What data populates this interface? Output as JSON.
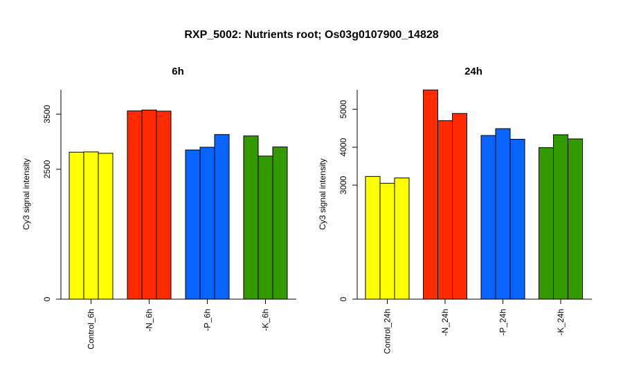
{
  "main_title": "RXP_5002: Nutrients root; Os03g0107900_14828",
  "chart_data": [
    {
      "type": "bar",
      "title": "6h",
      "ylabel": "Cy3 signal intensity",
      "xlabel": "",
      "yticks": [
        0,
        2500,
        3500
      ],
      "ylim_note": "broken axis: 0 at baseline, 2500-3500 scale above",
      "groups": [
        {
          "label": "Control_6h",
          "color": "#FFFF00",
          "values": [
            2810,
            2815,
            2790
          ]
        },
        {
          "label": "-N_6h",
          "color": "#FF2A00",
          "values": [
            3560,
            3575,
            3555
          ]
        },
        {
          "label": "-P_6h",
          "color": "#0A64FF",
          "values": [
            2850,
            2900,
            3130
          ]
        },
        {
          "label": "-K_6h",
          "color": "#339900",
          "values": [
            3105,
            2740,
            2905
          ]
        }
      ]
    },
    {
      "type": "bar",
      "title": "24h",
      "ylabel": "Cy3 signal intensity",
      "xlabel": "",
      "yticks": [
        0,
        3000,
        4000,
        5000
      ],
      "ylim_note": "broken axis: 0 at baseline, 3000-5000 scale above",
      "groups": [
        {
          "label": "Control_24h",
          "color": "#FFFF00",
          "values": [
            3230,
            3050,
            3190
          ]
        },
        {
          "label": "-N_24h",
          "color": "#FF2A00",
          "values": [
            5510,
            4700,
            4890
          ]
        },
        {
          "label": "-P_24h",
          "color": "#0A64FF",
          "values": [
            4310,
            4490,
            4210
          ]
        },
        {
          "label": "-K_24h",
          "color": "#339900",
          "values": [
            3990,
            4330,
            4220
          ]
        }
      ]
    }
  ]
}
